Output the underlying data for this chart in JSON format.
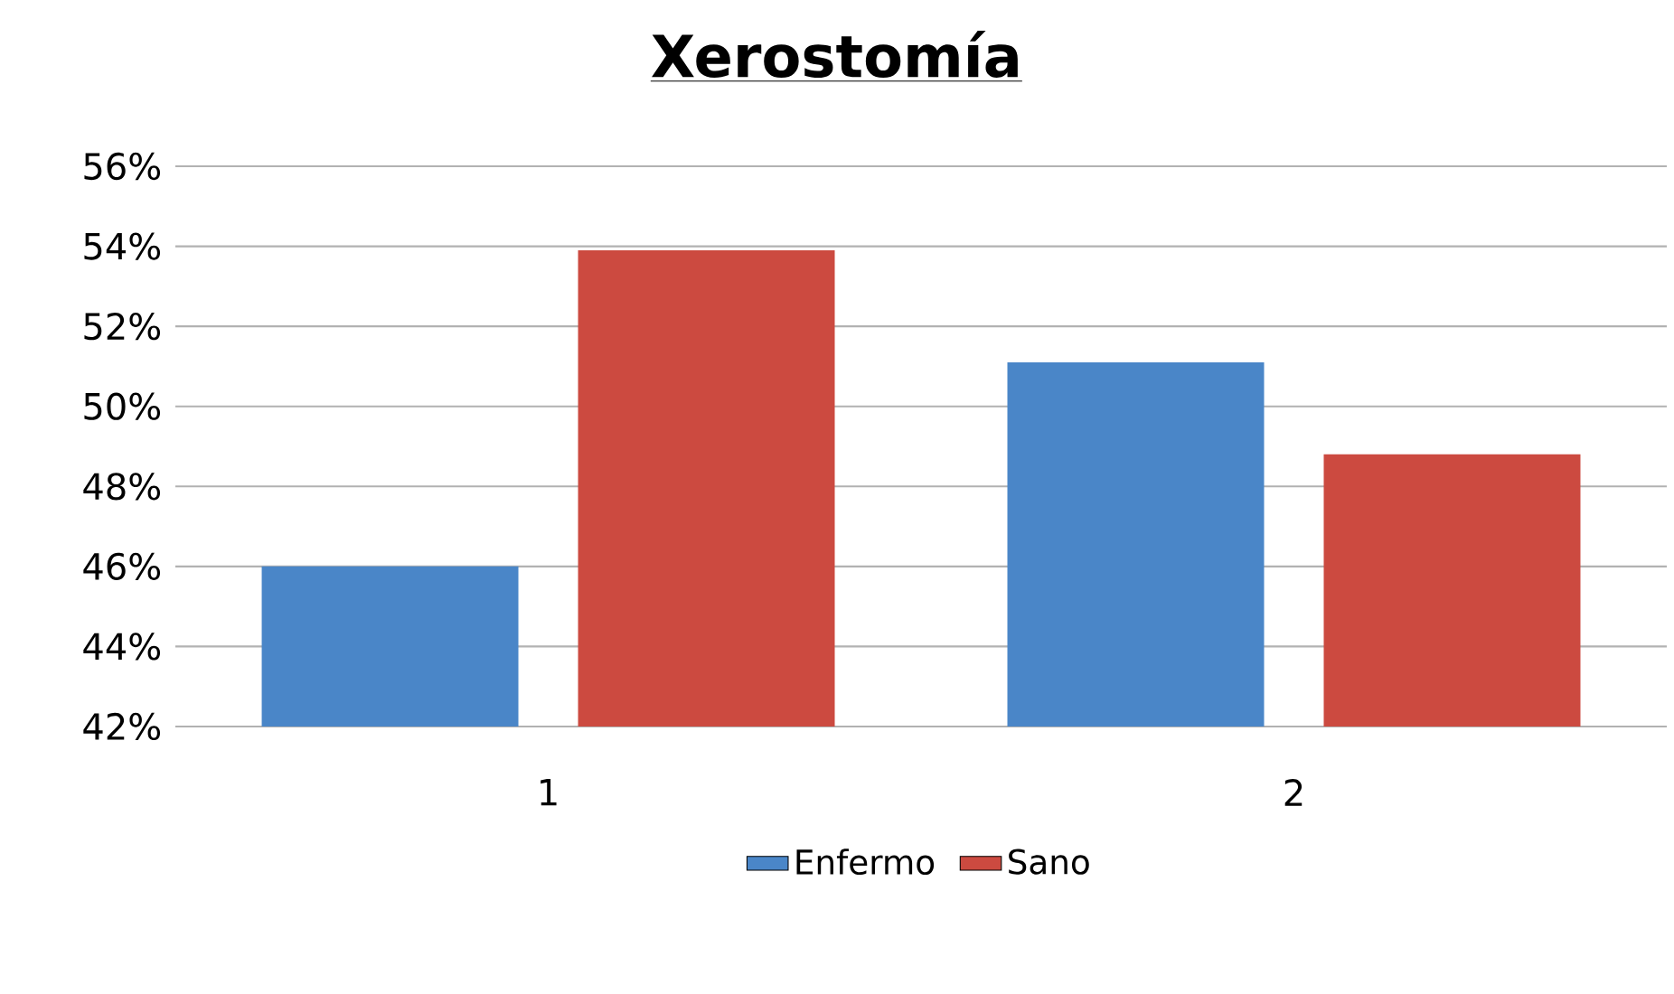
{
  "chart_data": {
    "type": "bar",
    "title": "Xerostomía",
    "categories": [
      "1",
      "2"
    ],
    "series": [
      {
        "name": "Enfermo",
        "color": "#4a86c8",
        "values": [
          46.0,
          51.1
        ]
      },
      {
        "name": "Sano",
        "color": "#cc4a40",
        "values": [
          53.9,
          48.8
        ]
      }
    ],
    "ylim": [
      42,
      56
    ],
    "yticks": [
      {
        "value": 42,
        "label": "42%"
      },
      {
        "value": 44,
        "label": "44%"
      },
      {
        "value": 46,
        "label": "46%"
      },
      {
        "value": 48,
        "label": "48%"
      },
      {
        "value": 50,
        "label": "50%"
      },
      {
        "value": 52,
        "label": "52%"
      },
      {
        "value": 54,
        "label": "54%"
      },
      {
        "value": 56,
        "label": "56%"
      }
    ],
    "grid": "y",
    "legend": "bottom"
  }
}
